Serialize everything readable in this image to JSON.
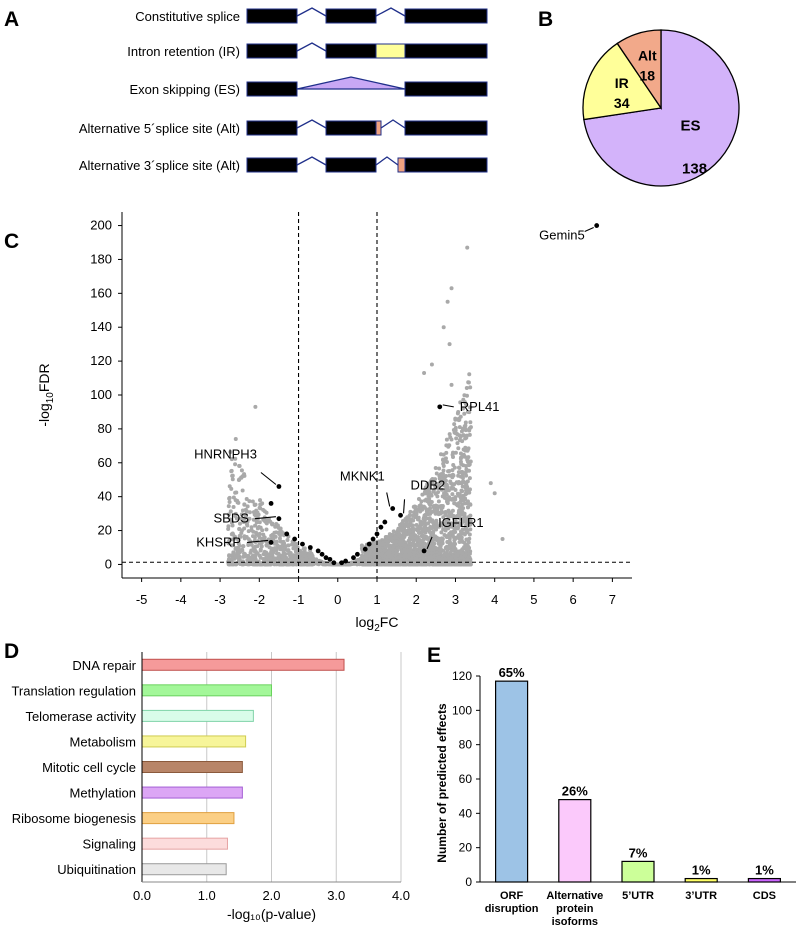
{
  "panels": {
    "a": "A",
    "b": "B",
    "c": "C",
    "d": "D",
    "e": "E"
  },
  "chart_data": [
    {
      "panel": "A",
      "type": "diagram",
      "rows": [
        {
          "label": "Constitutive splice",
          "event": "constitutive"
        },
        {
          "label": "Intron retention (IR)",
          "event": "ir"
        },
        {
          "label": "Exon skipping (ES)",
          "event": "es"
        },
        {
          "label": "Alternative 5´splice site (Alt)",
          "event": "alt5"
        },
        {
          "label": "Alternative 3´splice site (Alt)",
          "event": "alt3"
        }
      ],
      "colors": {
        "exon": "#000000",
        "outline": "#1f2f8a",
        "intron": "#ffff99",
        "skip": "#c8a8f5",
        "alt": "#f0a27f"
      }
    },
    {
      "panel": "B",
      "type": "pie",
      "slices": [
        {
          "name": "ES",
          "value": 138,
          "color": "#d3b3fa"
        },
        {
          "name": "IR",
          "value": 34,
          "color": "#ffff99"
        },
        {
          "name": "Alt",
          "value": 18,
          "color": "#f2a98a"
        }
      ]
    },
    {
      "panel": "C",
      "type": "scatter",
      "xlabel_main": "log",
      "xlabel_sub": "2",
      "xlabel_tail": "FC",
      "ylabel_main": "-log",
      "ylabel_sub": "10",
      "ylabel_tail": "FDR",
      "xlim": [
        -5.5,
        7.5
      ],
      "ylim": [
        -8,
        208
      ],
      "xticks": [
        "-5",
        "-4",
        "-3",
        "-2",
        "-1",
        "0",
        "1",
        "2",
        "3",
        "4",
        "5",
        "6",
        "7"
      ],
      "yticks": [
        "0",
        "20",
        "40",
        "60",
        "80",
        "100",
        "120",
        "140",
        "160",
        "180",
        "200"
      ],
      "thresholds_x": [
        -1,
        1
      ],
      "threshold_y": 1.3,
      "colors": {
        "background_points": "#a9a9a9",
        "highlight_points": "#000000"
      },
      "labeled_genes": [
        {
          "name": "Gemin5",
          "x": 6.6,
          "y": 200
        },
        {
          "name": "RPL41",
          "x": 2.6,
          "y": 93
        },
        {
          "name": "HNRNPH3",
          "x": -1.5,
          "y": 46
        },
        {
          "name": "MKNK1",
          "x": 1.4,
          "y": 33
        },
        {
          "name": "DDB2",
          "x": 1.6,
          "y": 29
        },
        {
          "name": "SBDS",
          "x": -1.5,
          "y": 27
        },
        {
          "name": "IGFLR1",
          "x": 2.2,
          "y": 8
        },
        {
          "name": "KHSRP",
          "x": -1.7,
          "y": 13
        }
      ],
      "highlight_points": [
        {
          "x": -1.7,
          "y": 36
        },
        {
          "x": -1.3,
          "y": 18
        },
        {
          "x": -1.1,
          "y": 15
        },
        {
          "x": -0.9,
          "y": 12
        },
        {
          "x": -0.7,
          "y": 10
        },
        {
          "x": -0.5,
          "y": 8
        },
        {
          "x": -0.4,
          "y": 6
        },
        {
          "x": -0.3,
          "y": 4
        },
        {
          "x": -0.2,
          "y": 3
        },
        {
          "x": -0.1,
          "y": 1
        },
        {
          "x": 0.1,
          "y": 1
        },
        {
          "x": 0.2,
          "y": 2
        },
        {
          "x": 0.4,
          "y": 4
        },
        {
          "x": 0.5,
          "y": 6
        },
        {
          "x": 0.7,
          "y": 9
        },
        {
          "x": 0.8,
          "y": 12
        },
        {
          "x": 0.9,
          "y": 15
        },
        {
          "x": 1.0,
          "y": 18
        },
        {
          "x": 1.1,
          "y": 22
        },
        {
          "x": 1.2,
          "y": 25
        }
      ]
    },
    {
      "panel": "D",
      "type": "bar",
      "orientation": "horizontal",
      "categories": [
        "DNA repair",
        "Translation regulation",
        "Telomerase activity",
        "Metabolism",
        "Mitotic cell cycle",
        "Methylation",
        "Ribosome biogenesis",
        "Signaling",
        "Ubiquitination"
      ],
      "values": [
        3.12,
        2.0,
        1.72,
        1.6,
        1.55,
        1.55,
        1.42,
        1.32,
        1.3
      ],
      "colors": [
        "#f59a9a",
        "#a3f799",
        "#d9fce9",
        "#f7f59a",
        "#b88568",
        "#dca6f5",
        "#fbcf85",
        "#fcdcdc",
        "#e8e8e8"
      ],
      "outlines": [
        "#c0504d",
        "#6ad35e",
        "#7fd3a8",
        "#cfcc50",
        "#8b5a3c",
        "#a45ed4",
        "#e0a040",
        "#e6a3a3",
        "#9a9a9a"
      ],
      "xlabel": "-log₁₀(p-value)",
      "xlim": [
        0,
        4
      ],
      "xticks": [
        "0.0",
        "1.0",
        "2.0",
        "3.0",
        "4.0"
      ],
      "grid": true
    },
    {
      "panel": "E",
      "type": "bar",
      "categories": [
        [
          "ORF",
          "disruption"
        ],
        [
          "Alternative",
          "protein",
          "isoforms"
        ],
        [
          "5’UTR"
        ],
        [
          "3’UTR"
        ],
        [
          "CDS"
        ]
      ],
      "values": [
        117,
        48,
        12,
        2,
        2
      ],
      "percent_labels": [
        "65%",
        "26%",
        "7%",
        "1%",
        "1%"
      ],
      "colors": [
        "#9dc3e6",
        "#fbc9fb",
        "#ccff99",
        "#ffff66",
        "#cc66ff"
      ],
      "ylabel": "Number of predicted effects",
      "ylim": [
        0,
        120
      ],
      "yticks": [
        "0",
        "20",
        "40",
        "60",
        "80",
        "100",
        "120"
      ]
    }
  ]
}
